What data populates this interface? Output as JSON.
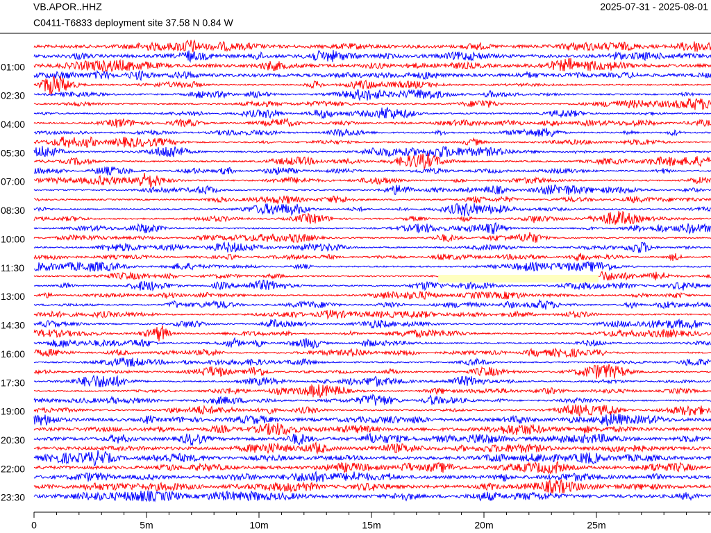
{
  "chart_data": {
    "type": "helicorder",
    "title": "VB.APOR..HHZ",
    "subtitle": "C0411-T6833 deployment site  37.58 N 0.84 W",
    "date_range": "2025-07-31 - 2025-08-01",
    "categories": [
      null,
      null,
      "01:00",
      null,
      null,
      "02:30",
      null,
      null,
      "04:00",
      null,
      null,
      "05:30",
      null,
      null,
      "07:00",
      null,
      null,
      "08:30",
      null,
      null,
      "10:00",
      null,
      null,
      "11:30",
      null,
      null,
      "13:00",
      null,
      null,
      "14:30",
      null,
      null,
      "16:00",
      null,
      null,
      "17:30",
      null,
      null,
      "19:00",
      null,
      null,
      "20:30",
      null,
      null,
      "22:00",
      null,
      null,
      "23:30"
    ],
    "colors": [
      "#ff0000",
      "#0000ff"
    ],
    "xlim": [
      0,
      30
    ],
    "xticks": [
      0,
      {
        "value": 5,
        "label": "5m"
      },
      {
        "value": 10,
        "label": "10m"
      },
      {
        "value": 15,
        "label": "15m"
      },
      {
        "value": 20,
        "label": "20m"
      },
      {
        "value": 25,
        "label": "25m"
      }
    ],
    "minor_xticks": [
      0,
      1,
      2,
      3,
      4,
      5,
      6,
      7,
      8,
      9,
      10,
      11,
      12,
      13,
      14,
      15,
      16,
      17,
      18,
      19,
      20,
      21,
      22,
      23,
      24,
      25,
      26,
      27,
      28,
      29,
      30
    ]
  }
}
